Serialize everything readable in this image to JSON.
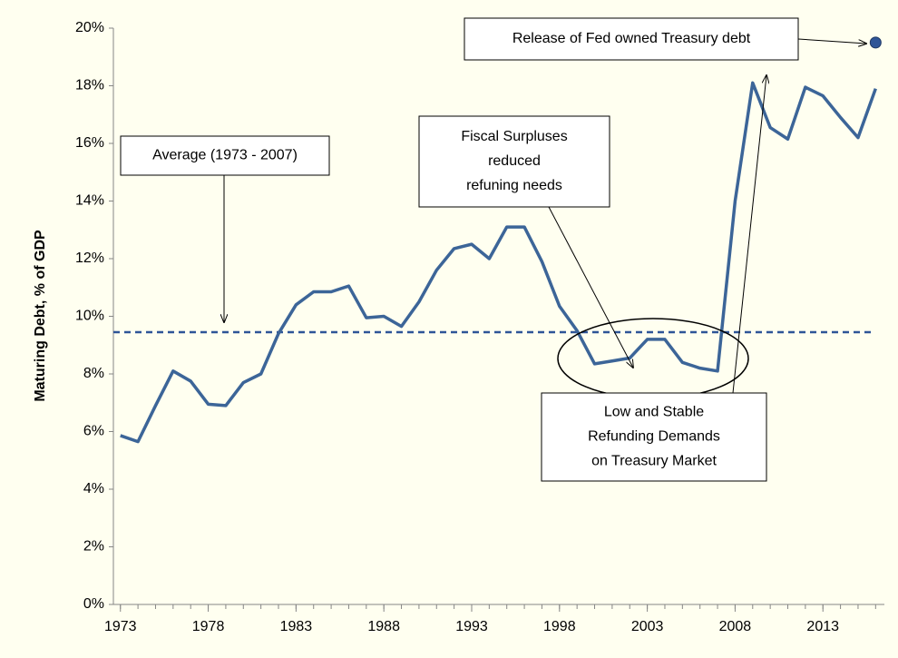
{
  "chart_data": {
    "type": "line",
    "y_label": "Maturing Debt, % of GDP",
    "x": [
      1973,
      1974,
      1975,
      1976,
      1977,
      1978,
      1979,
      1980,
      1981,
      1982,
      1983,
      1984,
      1985,
      1986,
      1987,
      1988,
      1989,
      1990,
      1991,
      1992,
      1993,
      1994,
      1995,
      1996,
      1997,
      1998,
      1999,
      2000,
      2001,
      2002,
      2003,
      2004,
      2005,
      2006,
      2007,
      2008,
      2009,
      2010,
      2011,
      2012,
      2013,
      2014,
      2015,
      2016
    ],
    "series": [
      {
        "color": "#3c6598",
        "values": [
          5.86,
          5.65,
          6.9,
          8.1,
          7.75,
          6.95,
          6.9,
          7.7,
          8.0,
          9.4,
          10.4,
          10.85,
          10.85,
          11.05,
          9.95,
          10.0,
          9.65,
          10.5,
          11.6,
          12.35,
          12.5,
          12.0,
          13.1,
          13.1,
          11.9,
          10.35,
          9.5,
          8.35,
          8.45,
          8.55,
          9.2,
          9.2,
          8.4,
          8.2,
          8.1,
          14.0,
          18.1,
          16.55,
          16.15,
          17.95,
          17.65,
          16.9,
          16.2,
          17.9
        ]
      }
    ],
    "average_line": {
      "value": 9.45,
      "color": "#2f5597"
    },
    "highlight_point": {
      "x": 2016,
      "value": 19.5,
      "color": "#2f5597"
    },
    "xlim": [
      1972.6,
      2016.5
    ],
    "xticks": [
      1973,
      1978,
      1983,
      1988,
      1993,
      1998,
      2003,
      2008,
      2013
    ],
    "ylim": [
      0,
      20
    ],
    "yticks": [
      {
        "value": 0,
        "label": "0%"
      },
      {
        "value": 2,
        "label": "2%"
      },
      {
        "value": 4,
        "label": "4%"
      },
      {
        "value": 6,
        "label": "6%"
      },
      {
        "value": 8,
        "label": "8%"
      },
      {
        "value": 10,
        "label": "10%"
      },
      {
        "value": 12,
        "label": "12%"
      },
      {
        "value": 14,
        "label": "14%"
      },
      {
        "value": 16,
        "label": "16%"
      },
      {
        "value": 18,
        "label": "18%"
      },
      {
        "value": 20,
        "label": "20%"
      }
    ],
    "annotations": [
      {
        "lines": [
          "Release of Fed owned Treasury debt"
        ]
      },
      {
        "lines": [
          "Average (1973 - 2007)"
        ]
      },
      {
        "lines": [
          "Fiscal Surpluses",
          "reduced",
          "refuning needs"
        ]
      },
      {
        "lines": [
          "Low and Stable",
          "Refunding Demands",
          "on Treasury Market"
        ]
      }
    ]
  }
}
